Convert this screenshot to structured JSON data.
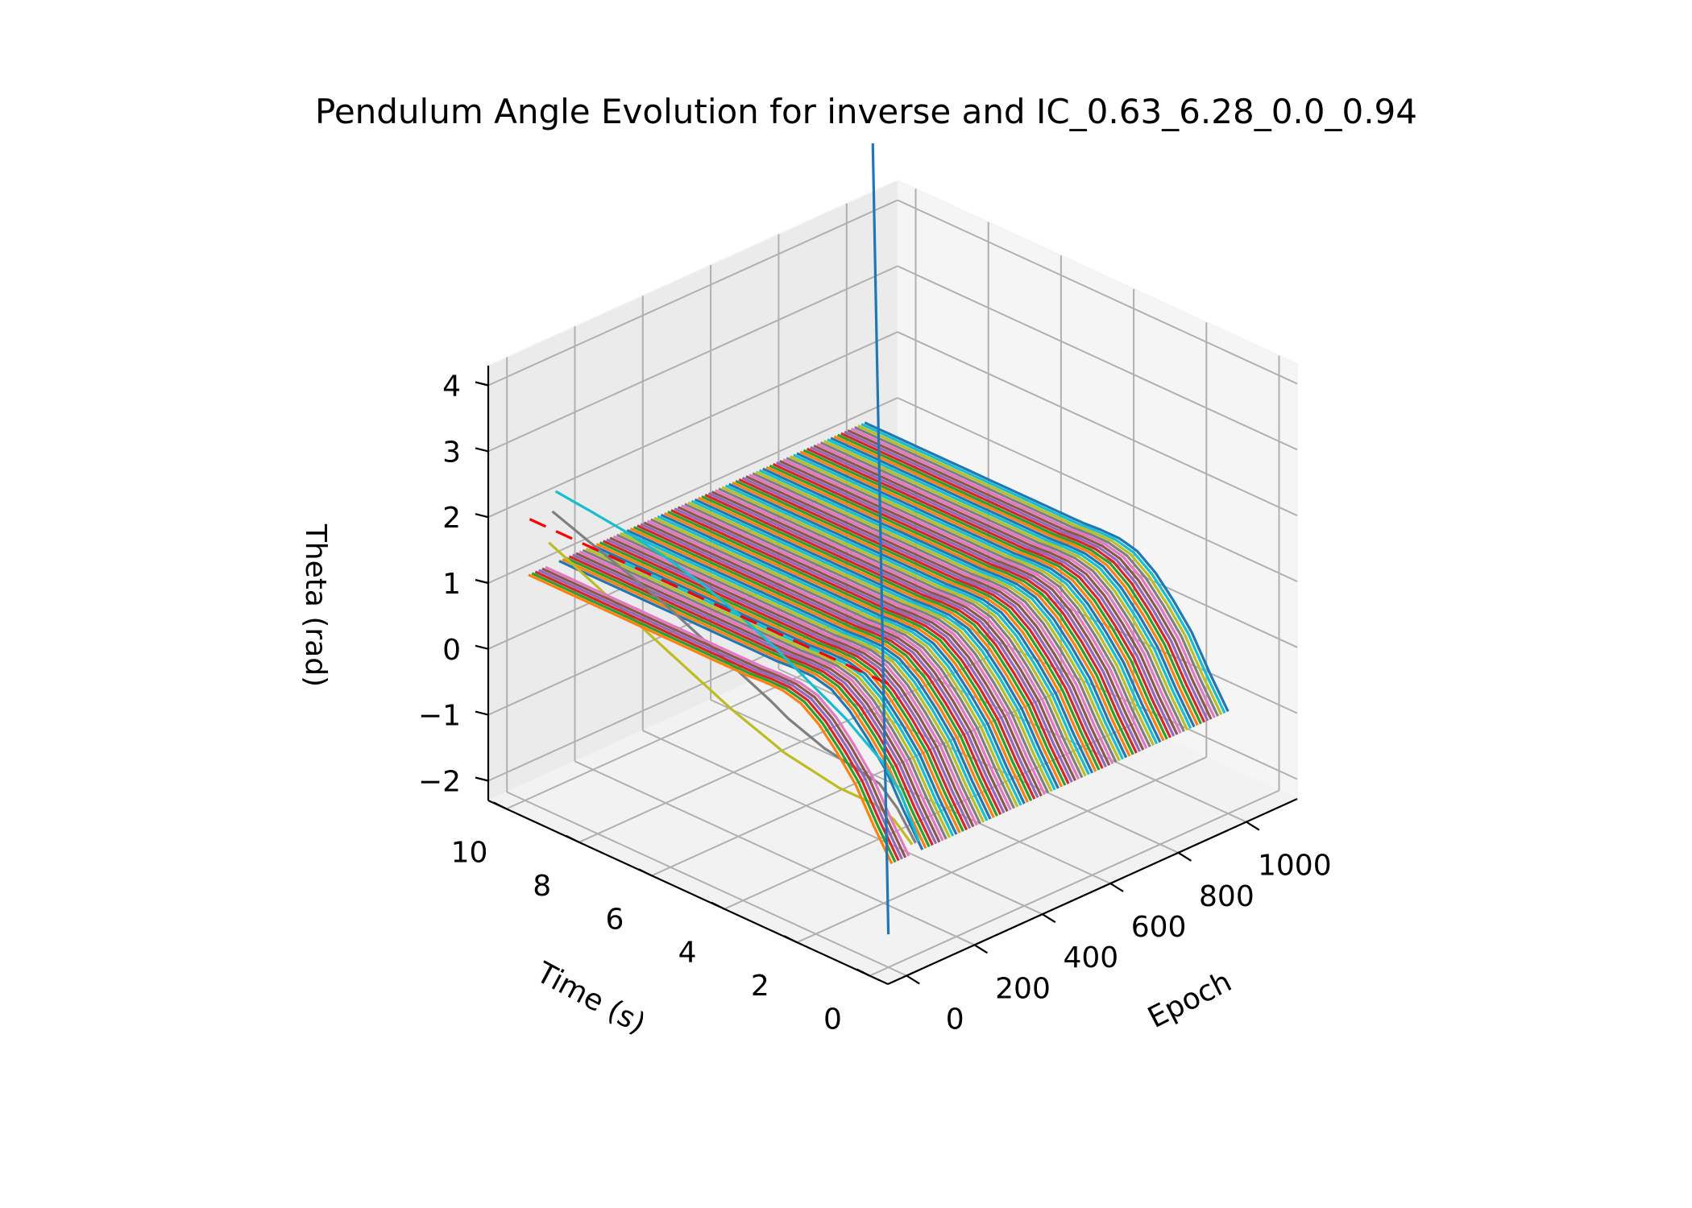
{
  "chart_data": {
    "type": "line",
    "projection": "3d",
    "title": "Pendulum Angle Evolution for inverse and IC_0.63_6.28_0.0_0.94",
    "axes": {
      "x": {
        "label": "Epoch",
        "ticks": [
          0,
          200,
          400,
          600,
          800,
          1000
        ],
        "lim": [
          -55,
          1150
        ]
      },
      "y": {
        "label": "Time (s)",
        "ticks": [
          0,
          2,
          4,
          6,
          8,
          10
        ],
        "lim": [
          -0.5,
          10.5
        ]
      },
      "z": {
        "label": "Theta (rad)",
        "ticks": [
          "−2",
          "−1",
          "0",
          "1",
          "2",
          "3",
          "4"
        ],
        "tick_values": [
          -2,
          -1,
          0,
          1,
          2,
          3,
          4
        ],
        "lim": [
          -2.3,
          4.3
        ]
      }
    },
    "grid": true,
    "legend": "none",
    "epoch_series": {
      "description_values": "theta(t) traces, one per epoch",
      "epochs_start": 0,
      "epochs_end": 1000,
      "epochs_step": 10,
      "time_samples": [
        0,
        0.5,
        1,
        1.5,
        2,
        2.5,
        3,
        3.5,
        4,
        5,
        6,
        7,
        8,
        9,
        10
      ],
      "converged_theta": [
        -0.75,
        -0.3,
        0.2,
        0.55,
        0.85,
        1.05,
        1.12,
        1.12,
        1.1,
        1.1,
        1.1,
        1.1,
        1.1,
        1.1,
        1.1
      ],
      "early_theta": [
        {
          "epoch": 0,
          "color": "#1f77b4",
          "theta": [
            -1.8,
            12,
            30,
            60,
            110,
            180,
            260,
            350,
            450,
            650,
            900,
            1200,
            1500,
            1850,
            2200
          ]
        },
        {
          "epoch": 70,
          "color": "#bcbd22",
          "theta": [
            -0.6,
            -0.35,
            -0.25,
            -0.25,
            -0.25,
            -0.2,
            -0.15,
            -0.1,
            0,
            0.2,
            0.45,
            0.7,
            0.95,
            1.2,
            1.45
          ]
        },
        {
          "epoch": 80,
          "color": "#7f7f7f",
          "theta": [
            -0.6,
            -0.2,
            0.05,
            0.1,
            0.15,
            0.2,
            0.3,
            0.4,
            0.55,
            0.8,
            1.05,
            1.3,
            1.5,
            1.7,
            1.9
          ]
        },
        {
          "epoch": 90,
          "color": "#17becf",
          "theta": [
            -0.6,
            0.0,
            0.35,
            0.55,
            0.75,
            0.9,
            1.05,
            1.2,
            1.35,
            1.6,
            1.8,
            1.95,
            2.05,
            2.12,
            2.18
          ]
        }
      ],
      "colors": [
        "#1f77b4",
        "#ff7f0e",
        "#2ca02c",
        "#d62728",
        "#9467bd",
        "#8c564b",
        "#e377c2",
        "#7f7f7f",
        "#bcbd22",
        "#17becf"
      ]
    },
    "reference_line": {
      "style": "dashed",
      "color": "#ff0000",
      "epoch": 0,
      "time": [
        0,
        10
      ],
      "theta": 2.0
    }
  }
}
